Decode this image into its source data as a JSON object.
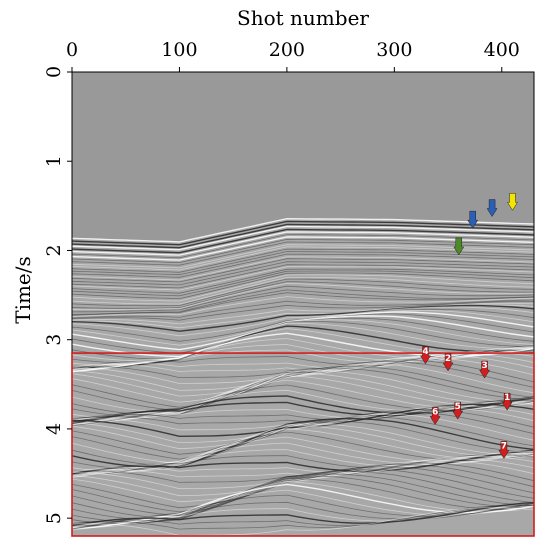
{
  "figure": {
    "x_axis_title": "Shot number",
    "y_axis_title": "Time/s",
    "x_ticks": [
      "0",
      "100",
      "200",
      "300",
      "400"
    ],
    "y_ticks": [
      "0",
      "1",
      "2",
      "3",
      "4",
      "5"
    ],
    "x_range": [
      0,
      430
    ],
    "y_range": [
      0,
      5.2
    ],
    "box_time_range": [
      3.15,
      5.2
    ],
    "colors": {
      "background": "#999999",
      "box": "#d21e1e",
      "marker_red": "#d21e1e",
      "marker_yellow": "#f2e600",
      "marker_blue": "#2b5fb5",
      "marker_green": "#4f8a2a"
    }
  },
  "markers": [
    {
      "label": "",
      "color": "yellow",
      "shot": 410,
      "time": 1.55
    },
    {
      "label": "",
      "color": "blue",
      "shot": 391,
      "time": 1.62
    },
    {
      "label": "",
      "color": "blue",
      "shot": 373,
      "time": 1.75
    },
    {
      "label": "",
      "color": "green",
      "shot": 360,
      "time": 2.05
    },
    {
      "label": "4",
      "color": "red",
      "shot": 329,
      "time": 3.27
    },
    {
      "label": "2",
      "color": "red",
      "shot": 350,
      "time": 3.35
    },
    {
      "label": "3",
      "color": "red",
      "shot": 384,
      "time": 3.43
    },
    {
      "label": "1",
      "color": "red",
      "shot": 405,
      "time": 3.79
    },
    {
      "label": "5",
      "color": "red",
      "shot": 359,
      "time": 3.89
    },
    {
      "label": "6",
      "color": "red",
      "shot": 338,
      "time": 3.95
    },
    {
      "label": "7",
      "color": "red",
      "shot": 402,
      "time": 4.33
    }
  ]
}
